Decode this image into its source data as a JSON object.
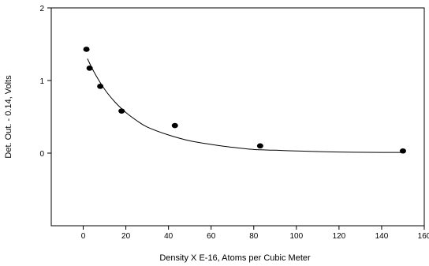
{
  "chart_data": {
    "type": "scatter",
    "title": "",
    "xlabel": "Density X E-16, Atoms per Cubic Meter",
    "ylabel": "Det. Out. - 0.14, Volts",
    "xlim": [
      -15,
      160
    ],
    "ylim": [
      -1,
      2
    ],
    "x_ticks": [
      0,
      20,
      40,
      60,
      80,
      100,
      120,
      140,
      160
    ],
    "y_ticks": [
      0,
      1,
      2
    ],
    "grid": false,
    "legend": "none",
    "series": [
      {
        "kind": "points",
        "color": "#000000",
        "points": [
          {
            "x": 1.5,
            "y": 1.43
          },
          {
            "x": 3,
            "y": 1.17
          },
          {
            "x": 8,
            "y": 0.92
          },
          {
            "x": 18,
            "y": 0.58
          },
          {
            "x": 43,
            "y": 0.38
          },
          {
            "x": 83,
            "y": 0.1
          },
          {
            "x": 150,
            "y": 0.03
          }
        ]
      },
      {
        "kind": "fit-curve",
        "color": "#000000",
        "points": [
          {
            "x": 2,
            "y": 1.3
          },
          {
            "x": 5,
            "y": 1.12
          },
          {
            "x": 10,
            "y": 0.88
          },
          {
            "x": 15,
            "y": 0.7
          },
          {
            "x": 20,
            "y": 0.56
          },
          {
            "x": 25,
            "y": 0.45
          },
          {
            "x": 30,
            "y": 0.36
          },
          {
            "x": 40,
            "y": 0.25
          },
          {
            "x": 50,
            "y": 0.17
          },
          {
            "x": 60,
            "y": 0.12
          },
          {
            "x": 70,
            "y": 0.08
          },
          {
            "x": 80,
            "y": 0.05
          },
          {
            "x": 90,
            "y": 0.04
          },
          {
            "x": 100,
            "y": 0.03
          },
          {
            "x": 120,
            "y": 0.015
          },
          {
            "x": 140,
            "y": 0.01
          },
          {
            "x": 150,
            "y": 0.01
          }
        ]
      }
    ]
  }
}
